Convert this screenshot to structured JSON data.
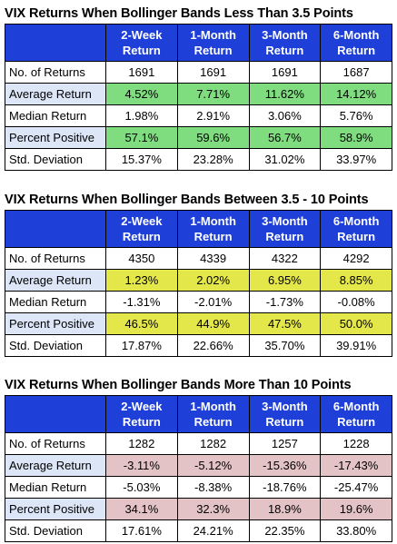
{
  "tables": [
    {
      "title": "VIX Returns When Bollinger Bands Less Than 3.5 Points",
      "highlight": "green",
      "headers": [
        [
          "2-Week",
          "Return"
        ],
        [
          "1-Month",
          "Return"
        ],
        [
          "3-Month",
          "Return"
        ],
        [
          "6-Month",
          "Return"
        ]
      ],
      "rows": [
        {
          "label": "No. of Returns",
          "values": [
            "1691",
            "1691",
            "1691",
            "1687"
          ]
        },
        {
          "label": "Average Return",
          "values": [
            "4.52%",
            "7.71%",
            "11.62%",
            "14.12%"
          ]
        },
        {
          "label": "Median Return",
          "values": [
            "1.98%",
            "2.91%",
            "3.06%",
            "5.76%"
          ]
        },
        {
          "label": "Percent Positive",
          "values": [
            "57.1%",
            "59.6%",
            "56.7%",
            "58.9%"
          ]
        },
        {
          "label": "Std. Deviation",
          "values": [
            "15.37%",
            "23.28%",
            "31.02%",
            "33.97%"
          ]
        }
      ]
    },
    {
      "title": "VIX Returns When Bollinger Bands Between 3.5 - 10 Points",
      "highlight": "yellow",
      "headers": [
        [
          "2-Week",
          "Return"
        ],
        [
          "1-Month",
          "Return"
        ],
        [
          "3-Month",
          "Return"
        ],
        [
          "6-Month",
          "Return"
        ]
      ],
      "rows": [
        {
          "label": "No. of Returns",
          "values": [
            "4350",
            "4339",
            "4322",
            "4292"
          ]
        },
        {
          "label": "Average Return",
          "values": [
            "1.23%",
            "2.02%",
            "6.95%",
            "8.85%"
          ]
        },
        {
          "label": "Median Return",
          "values": [
            "-1.31%",
            "-2.01%",
            "-1.73%",
            "-0.08%"
          ]
        },
        {
          "label": "Percent Positive",
          "values": [
            "46.5%",
            "44.9%",
            "47.5%",
            "50.0%"
          ]
        },
        {
          "label": "Std. Deviation",
          "values": [
            "17.87%",
            "22.66%",
            "35.70%",
            "39.91%"
          ]
        }
      ]
    },
    {
      "title": "VIX Returns When Bollinger Bands More Than 10 Points",
      "highlight": "red",
      "headers": [
        [
          "2-Week",
          "Return"
        ],
        [
          "1-Month",
          "Return"
        ],
        [
          "3-Month",
          "Return"
        ],
        [
          "6-Month",
          "Return"
        ]
      ],
      "rows": [
        {
          "label": "No. of Returns",
          "values": [
            "1282",
            "1282",
            "1257",
            "1228"
          ]
        },
        {
          "label": "Average Return",
          "values": [
            "-3.11%",
            "-5.12%",
            "-15.36%",
            "-17.43%"
          ]
        },
        {
          "label": "Median Return",
          "values": [
            "-5.03%",
            "-8.38%",
            "-18.76%",
            "-25.47%"
          ]
        },
        {
          "label": "Percent Positive",
          "values": [
            "34.1%",
            "32.3%",
            "18.9%",
            "19.6%"
          ]
        },
        {
          "label": "Std. Deviation",
          "values": [
            "17.61%",
            "24.21%",
            "22.35%",
            "33.80%"
          ]
        }
      ]
    }
  ],
  "colors": {
    "header_blue": "#1f3fd9",
    "label_tint": "#dde6f7",
    "green": "#7fdc7f",
    "yellow": "#e3e74a",
    "red": "#e3c3c6"
  }
}
